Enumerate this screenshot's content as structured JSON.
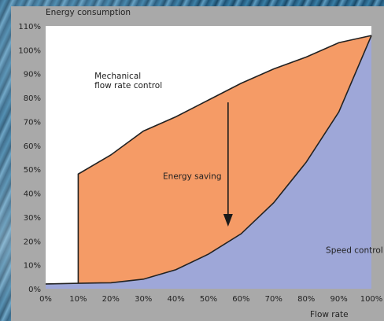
{
  "chart_data": {
    "type": "area",
    "title": "Energy consumption",
    "xlabel": "Flow rate",
    "ylabel": "",
    "x": [
      0,
      10,
      20,
      30,
      40,
      50,
      60,
      70,
      80,
      90,
      100
    ],
    "x_tick_labels": [
      "0%",
      "10%",
      "20%",
      "30%",
      "40%",
      "50%",
      "60%",
      "70%",
      "80%",
      "90%",
      "100%"
    ],
    "y_tick_labels": [
      "0%",
      "10%",
      "20%",
      "30%",
      "40%",
      "50%",
      "60%",
      "70%",
      "80%",
      "90%",
      "100%",
      "110%"
    ],
    "xlim": [
      0,
      100
    ],
    "ylim": [
      0,
      110
    ],
    "grid": false,
    "series": [
      {
        "name": "Mechanical flow rate control",
        "x": [
          10,
          20,
          30,
          40,
          50,
          60,
          70,
          80,
          90,
          100
        ],
        "values": [
          48,
          56,
          66,
          72,
          79,
          86,
          92,
          97,
          103,
          106
        ]
      },
      {
        "name": "Speed control",
        "x": [
          0,
          10,
          20,
          30,
          40,
          50,
          60,
          70,
          80,
          90,
          100
        ],
        "values": [
          2,
          2.3,
          2.5,
          4,
          8,
          14.5,
          23,
          36,
          53,
          74,
          106
        ]
      }
    ],
    "annotations": [
      {
        "text": "Mechanical",
        "x": 15,
        "y": 88
      },
      {
        "text": "flow rate control",
        "x": 15,
        "y": 84
      },
      {
        "text": "Energy saving",
        "x": 36,
        "y": 46
      },
      {
        "text": "Speed control",
        "x": 86,
        "y": 15
      }
    ],
    "arrow": {
      "x": 56,
      "y_start": 78,
      "y_end": 26
    },
    "colors": {
      "saving_fill": "#f59b66",
      "speed_fill": "#9ea7d8",
      "plot_bg": "#ffffff",
      "line": "#222222"
    }
  }
}
